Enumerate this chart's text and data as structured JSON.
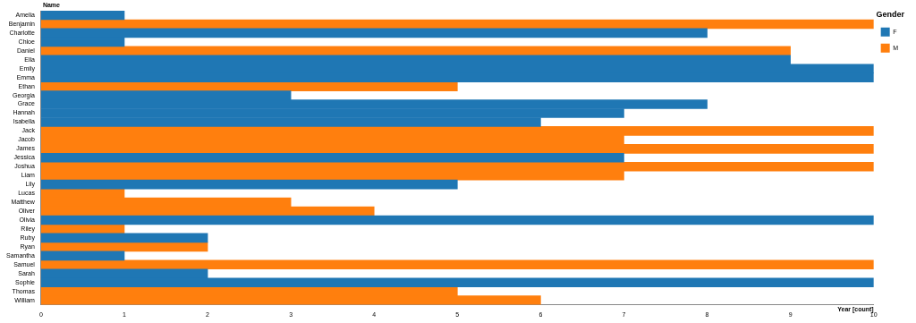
{
  "chart_data": {
    "type": "bar",
    "orientation": "horizontal",
    "stacked": true,
    "xlabel": "Year [count]",
    "ylabel": "Name",
    "legend_title": "Gender",
    "legend": "top right",
    "grid": false,
    "categories": [
      "Amelia",
      "Benjamin",
      "Charlotte",
      "Chloe",
      "Daniel",
      "Ella",
      "Emily",
      "Emma",
      "Ethan",
      "Georgia",
      "Grace",
      "Hannah",
      "Isabella",
      "Jack",
      "Jacob",
      "James",
      "Jessica",
      "Joshua",
      "Liam",
      "Lily",
      "Lucas",
      "Matthew",
      "Oliver",
      "Olivia",
      "Riley",
      "Ruby",
      "Ryan",
      "Samantha",
      "Samuel",
      "Sarah",
      "Sophie",
      "Thomas",
      "William"
    ],
    "series": [
      {
        "name": "F",
        "color": "#1f77b4",
        "values": [
          1,
          null,
          8,
          1,
          null,
          9,
          10,
          10,
          null,
          3,
          8,
          7,
          6,
          null,
          null,
          null,
          7,
          null,
          null,
          5,
          null,
          null,
          null,
          10,
          null,
          2,
          null,
          1,
          null,
          2,
          10,
          null,
          null
        ]
      },
      {
        "name": "M",
        "color": "#ff7f0e",
        "values": [
          null,
          10,
          null,
          null,
          9,
          null,
          null,
          null,
          5,
          null,
          null,
          null,
          null,
          10,
          7,
          10,
          null,
          10,
          7,
          null,
          1,
          3,
          4,
          null,
          1,
          null,
          2,
          null,
          10,
          null,
          null,
          5,
          6
        ]
      }
    ],
    "xlim": [
      0,
      10
    ],
    "xticks": [
      0,
      1,
      2,
      3,
      4,
      5,
      6,
      7,
      8,
      9,
      10
    ]
  }
}
